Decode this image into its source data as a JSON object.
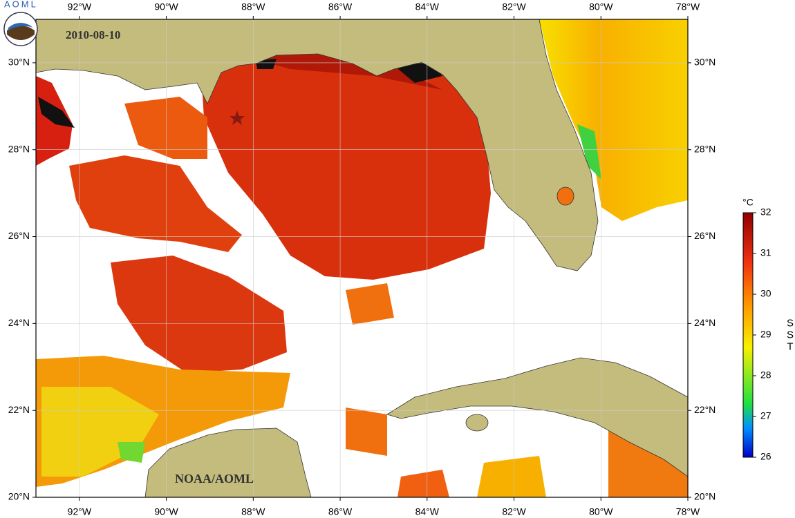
{
  "map": {
    "date": "2010-08-10",
    "credit": "NOAA/AOML",
    "logo_text": "AOML",
    "lon_range": [
      -93,
      -78
    ],
    "lat_range": [
      20,
      31
    ],
    "lon_ticks": [
      {
        "value": -92,
        "label": "92°W"
      },
      {
        "value": -90,
        "label": "90°W"
      },
      {
        "value": -88,
        "label": "88°W"
      },
      {
        "value": -86,
        "label": "86°W"
      },
      {
        "value": -84,
        "label": "84°W"
      },
      {
        "value": -82,
        "label": "82°W"
      },
      {
        "value": -80,
        "label": "80°W"
      },
      {
        "value": -78,
        "label": "78°W"
      }
    ],
    "lat_ticks": [
      {
        "value": 20,
        "label": "20°N"
      },
      {
        "value": 22,
        "label": "22°N"
      },
      {
        "value": 24,
        "label": "24°N"
      },
      {
        "value": 26,
        "label": "26°N"
      },
      {
        "value": 28,
        "label": "28°N"
      },
      {
        "value": 30,
        "label": "30°N"
      }
    ],
    "grid": true
  },
  "colorbar": {
    "unit": "°C",
    "label": "SST",
    "range": [
      26,
      32
    ],
    "ticks": [
      26,
      27,
      28,
      29,
      30,
      31,
      32
    ]
  }
}
